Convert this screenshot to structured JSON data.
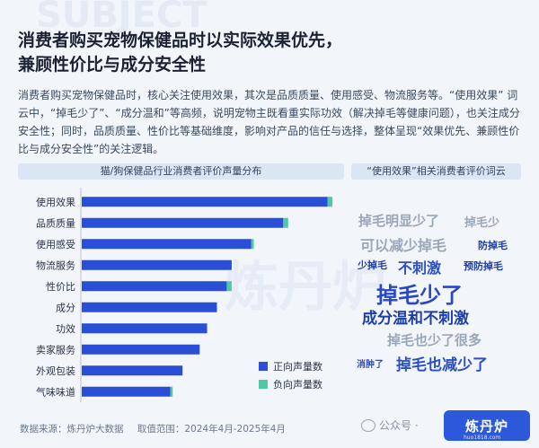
{
  "header": {
    "title_line1": "消费者购买宠物保健品时以实际效果优先，",
    "title_line2": "兼顾性价比与成分安全性",
    "description": "消费者购买宠物保健品时，核心关注使用效果，其次是品质质量、使用感受、物流服务等。“使用效果” 词云中，“掉毛少了”、“成分温和”等高频，说明宠物主既看重实际功效（解决掉毛等健康问题），也关注成分安全性；同时，品质质量、性价比等基础维度，影响对产品的信任与选择，整体呈现“效果优先、兼顾性价比与成分安全性”的关注逻辑。"
  },
  "panels": {
    "chart_title": "猫/狗保健品行业消费者评价声量分布",
    "cloud_title": "“使用效果”相关消费者评价词云"
  },
  "chart_data": {
    "type": "bar",
    "orientation": "horizontal",
    "stacked": true,
    "title": "猫/狗保健品行业消费者评价声量分布",
    "categories": [
      "使用效果",
      "品质质量",
      "使用感受",
      "物流服务",
      "性价比",
      "成分",
      "功效",
      "卖家服务",
      "外观包装",
      "气味味道"
    ],
    "series": [
      {
        "name": "正向声量数",
        "color": "#2a4fd6",
        "values": [
          100,
          82,
          69,
          61,
          59,
          55,
          51,
          48,
          41,
          36
        ]
      },
      {
        "name": "负向声量数",
        "color": "#52c7a8",
        "values": [
          2,
          2,
          1,
          0,
          2,
          0,
          0,
          0,
          0,
          1
        ]
      }
    ],
    "xlim": [
      0,
      106
    ],
    "grid": false,
    "legend": "bottom-right",
    "xlabel": "",
    "ylabel": ""
  },
  "word_cloud": [
    {
      "text": "掉毛明显少了",
      "color": "#9aa7b8",
      "size": 15
    },
    {
      "text": "掉毛少",
      "color": "#9aa7b8",
      "size": 13
    },
    {
      "text": "可以减少掉毛",
      "color": "#9aa7b8",
      "size": 16
    },
    {
      "text": "防掉毛",
      "color": "#1f3fa8",
      "size": 11
    },
    {
      "text": "少掉毛",
      "color": "#1f3fa8",
      "size": 11
    },
    {
      "text": "不刺激",
      "color": "#2b4fc4",
      "size": 16
    },
    {
      "text": "预防掉毛",
      "color": "#1f3fa8",
      "size": 11
    },
    {
      "text": "掉毛少了",
      "color": "#2748c7",
      "size": 24
    },
    {
      "text": "成分温和不刺激",
      "color": "#1f3fa8",
      "size": 17
    },
    {
      "text": "掉毛也少了很多",
      "color": "#9aa7b8",
      "size": 15
    },
    {
      "text": "消肿了",
      "color": "#2b4fc4",
      "size": 10
    },
    {
      "text": "掉毛也减少了",
      "color": "#2b4fc4",
      "size": 17
    }
  ],
  "footer": {
    "source": "数据来源：炼丹炉大数据",
    "range": "取值范围：2024年4月-2025年4月",
    "wechat": "公众号 ·",
    "logo": "炼丹炉",
    "logo_sub": "huo1818.com"
  }
}
